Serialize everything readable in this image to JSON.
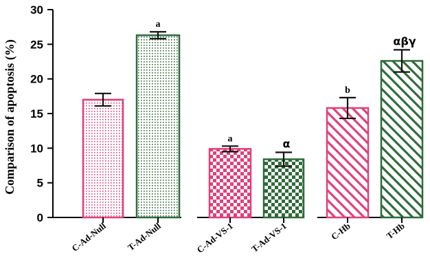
{
  "chart_data": {
    "type": "bar",
    "ylabel": "Comparison of apoptosis (%)",
    "ylim": [
      0,
      30
    ],
    "yticks": [
      0,
      5,
      10,
      15,
      20,
      25,
      30
    ],
    "grid": false,
    "categories": [
      "C-Ad-Null",
      "T-Ad-Null",
      "C-Ad-VS-1",
      "T-Ad-VS-1",
      "C-Hb",
      "T-Hb"
    ],
    "values": [
      17.0,
      26.3,
      9.9,
      8.4,
      15.8,
      22.6
    ],
    "errors": [
      0.9,
      0.5,
      0.4,
      1.0,
      1.5,
      1.6
    ],
    "annotations": [
      "",
      "a",
      "a",
      "α",
      "b",
      "αβγ"
    ],
    "colors": [
      "#e0407a",
      "#2e6b3a",
      "#e0407a",
      "#2e6b3a",
      "#e0407a",
      "#2e6b3a"
    ],
    "patterns": [
      "dots",
      "dots",
      "checker",
      "checker",
      "hatch",
      "hatch"
    ]
  }
}
